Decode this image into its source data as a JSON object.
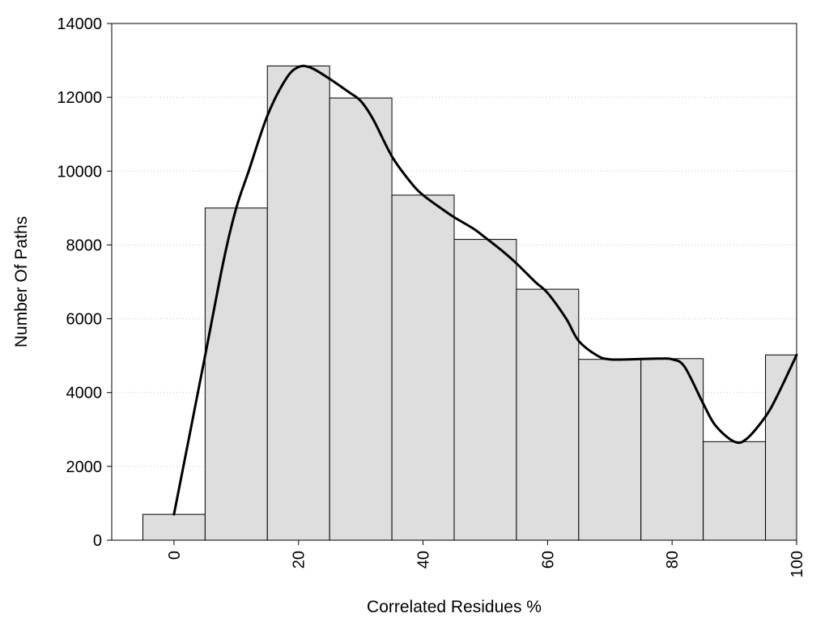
{
  "chart_data": {
    "type": "bar",
    "x": [
      0,
      10,
      20,
      30,
      40,
      50,
      60,
      70,
      80,
      90,
      100
    ],
    "values": [
      700,
      9000,
      12850,
      11980,
      9350,
      8150,
      6800,
      4900,
      4920,
      2670,
      5020
    ],
    "bin_width": 10,
    "curve": {
      "x": [
        0,
        5,
        8,
        10,
        12,
        15,
        18,
        20,
        22,
        25,
        28,
        30,
        32,
        35,
        38,
        40,
        43,
        45,
        48,
        50,
        53,
        55,
        58,
        60,
        63,
        65,
        68,
        70,
        73,
        75,
        78,
        80,
        82,
        85,
        87,
        90,
        92,
        95,
        97,
        100
      ],
      "y": [
        700,
        5000,
        7600,
        9000,
        10000,
        11500,
        12500,
        12820,
        12800,
        12500,
        12150,
        11900,
        11400,
        10400,
        9700,
        9350,
        8980,
        8750,
        8450,
        8200,
        7800,
        7500,
        7000,
        6700,
        6000,
        5400,
        5000,
        4900,
        4900,
        4910,
        4920,
        4900,
        4700,
        3700,
        3100,
        2670,
        2750,
        3350,
        3950,
        5020
      ]
    },
    "xlabel": "Correlated Residues %",
    "ylabel": "Number Of Paths",
    "xticks": [
      "0",
      "20",
      "40",
      "60",
      "80",
      "100"
    ],
    "xtick_values": [
      0,
      20,
      40,
      60,
      80,
      100
    ],
    "yticks": [
      "0",
      "2000",
      "4000",
      "6000",
      "8000",
      "10000",
      "12000",
      "14000"
    ],
    "ytick_values": [
      0,
      2000,
      4000,
      6000,
      8000,
      10000,
      12000,
      14000
    ],
    "xlim": [
      -10,
      100
    ],
    "ylim": [
      0,
      14000
    ],
    "grid": "horizontal dotted",
    "colors": {
      "bar_fill": "#dedede",
      "bar_edge": "#000000",
      "curve": "#000000"
    }
  }
}
